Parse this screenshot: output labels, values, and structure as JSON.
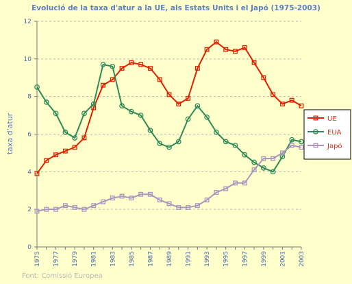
{
  "chart_data": {
    "type": "line",
    "title": "Evolució de la taxa d'atur a la UE, als Estats Units i el Japó (1975-2003)",
    "xlabel": "",
    "ylabel": "taxa d'atur",
    "x": [
      1975,
      1976,
      1977,
      1978,
      1979,
      1980,
      1981,
      1982,
      1983,
      1984,
      1985,
      1986,
      1987,
      1988,
      1989,
      1990,
      1991,
      1992,
      1993,
      1994,
      1995,
      1996,
      1997,
      1998,
      1999,
      2000,
      2001,
      2002,
      2003
    ],
    "xticks": [
      "1975",
      "1977",
      "1979",
      "1981",
      "1983",
      "1985",
      "1987",
      "1989",
      "1991",
      "1993",
      "1995",
      "1997",
      "1999",
      "2001",
      "2003"
    ],
    "ylim": [
      0,
      12
    ],
    "yticks": [
      "0",
      "2",
      "4",
      "6",
      "8",
      "10",
      "12"
    ],
    "grid": "horizontal dashed",
    "legend_position": "right",
    "series": [
      {
        "name": "UE",
        "color": "#dd2200",
        "marker": "square",
        "values": [
          3.9,
          4.6,
          4.9,
          5.1,
          5.3,
          5.8,
          7.4,
          8.6,
          8.9,
          9.5,
          9.8,
          9.7,
          9.5,
          8.9,
          8.1,
          7.6,
          7.9,
          9.5,
          10.5,
          10.9,
          10.5,
          10.4,
          10.6,
          9.8,
          9.0,
          8.1,
          7.6,
          7.8,
          7.5
        ]
      },
      {
        "name": "EUA",
        "color": "#2e8b57",
        "marker": "circle",
        "values": [
          8.5,
          7.7,
          7.1,
          6.1,
          5.8,
          7.1,
          7.6,
          9.7,
          9.6,
          7.5,
          7.2,
          7.0,
          6.2,
          5.5,
          5.3,
          5.6,
          6.8,
          7.5,
          6.9,
          6.1,
          5.6,
          5.4,
          4.9,
          4.5,
          4.2,
          4.0,
          4.8,
          5.7,
          5.6
        ]
      },
      {
        "name": "Japó",
        "color": "#a896c0",
        "marker": "square",
        "values": [
          1.9,
          2.0,
          2.0,
          2.2,
          2.1,
          2.0,
          2.2,
          2.4,
          2.6,
          2.7,
          2.6,
          2.8,
          2.8,
          2.5,
          2.3,
          2.1,
          2.1,
          2.2,
          2.5,
          2.9,
          3.1,
          3.4,
          3.4,
          4.1,
          4.7,
          4.7,
          5.0,
          5.4,
          5.3
        ]
      }
    ],
    "source": "Font: Comissió Europea"
  },
  "colors": {
    "background": "#ffffcc",
    "axis": "#7a7a7a",
    "grid": "#b8b8b8"
  }
}
